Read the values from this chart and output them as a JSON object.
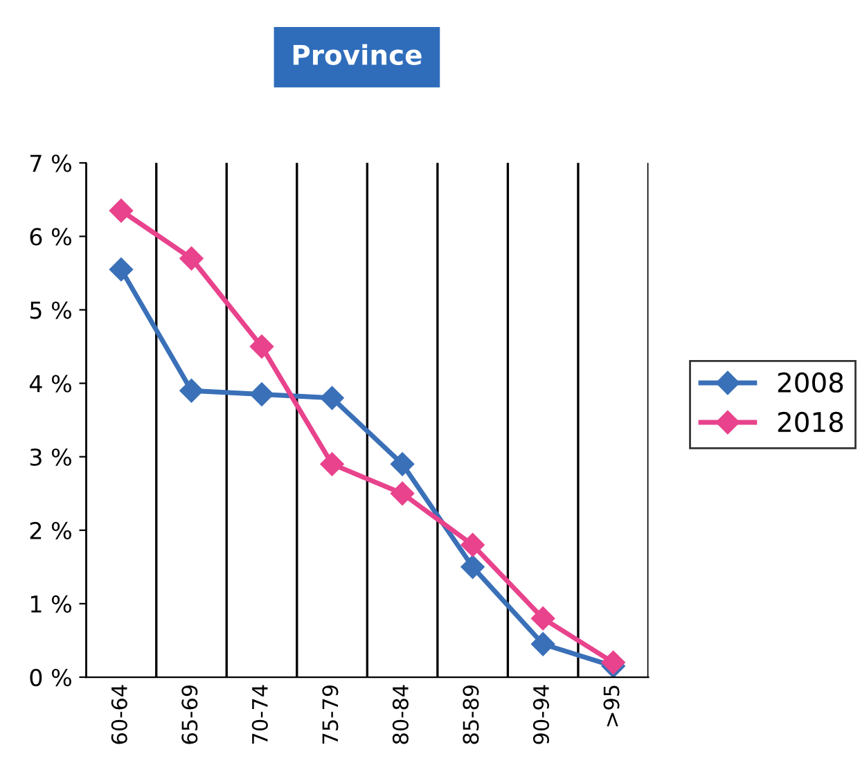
{
  "chart_data": {
    "type": "line",
    "title": "Province",
    "categories": [
      "60-64",
      "65-69",
      "70-74",
      "75-79",
      "80-84",
      "85-89",
      "90-94",
      ">95"
    ],
    "series": [
      {
        "name": "2008",
        "color": "#3a70b8",
        "values": [
          5.55,
          3.9,
          3.85,
          3.8,
          2.9,
          1.5,
          0.45,
          0.15
        ]
      },
      {
        "name": "2018",
        "color": "#e8438c",
        "values": [
          6.35,
          5.7,
          4.5,
          2.9,
          2.5,
          1.8,
          0.8,
          0.2
        ]
      }
    ],
    "ylim": [
      0,
      7
    ],
    "yticks": [
      {
        "value": 0,
        "label": "0 %"
      },
      {
        "value": 1,
        "label": "1 %"
      },
      {
        "value": 2,
        "label": "2 %"
      },
      {
        "value": 3,
        "label": "3 %"
      },
      {
        "value": 4,
        "label": "4 %"
      },
      {
        "value": 5,
        "label": "5 %"
      },
      {
        "value": 6,
        "label": "6 %"
      },
      {
        "value": 7,
        "label": "7 %"
      }
    ],
    "grid": "x",
    "legend": "right",
    "marker": "diamond",
    "line_style": "solid"
  }
}
